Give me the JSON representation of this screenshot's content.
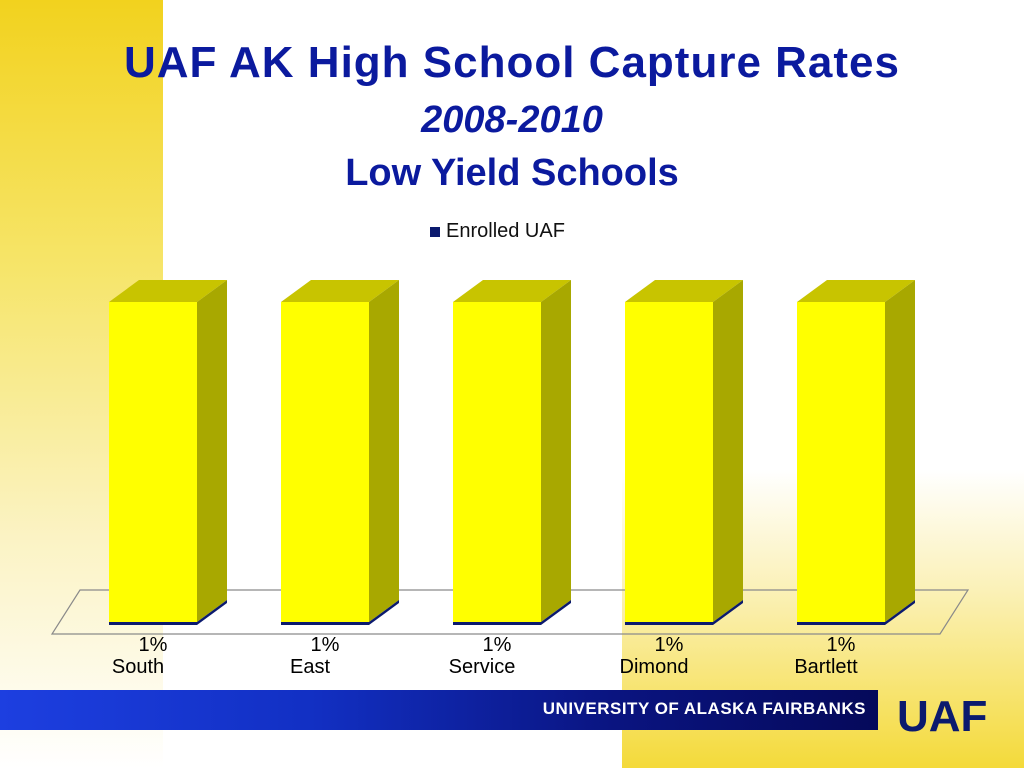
{
  "title": {
    "line1": "UAF AK High School Capture Rates",
    "line2": "2008-2010",
    "line3": "Low Yield Schools"
  },
  "legend": {
    "label": "Enrolled UAF"
  },
  "colors": {
    "bar_front": "#ffff00",
    "bar_side": "#a8a800",
    "bar_top": "#c8c400",
    "title": "#0b1a9e",
    "legend_swatch": "#0b1a6e"
  },
  "chart_data": {
    "type": "bar",
    "title": "UAF AK High School Capture Rates 2008-2010 Low Yield Schools",
    "categories": [
      "South",
      "East",
      "Service",
      "Dimond",
      "Bartlett"
    ],
    "series": [
      {
        "name": "Enrolled UAF",
        "values": [
          1,
          1,
          1,
          1,
          1
        ]
      }
    ],
    "data_labels": [
      "1%",
      "1%",
      "1%",
      "1%",
      "1%"
    ],
    "unit": "%",
    "note": "bars depict the remaining share filling the plot; labels show 1% enrolled UAF",
    "ylim": [
      0,
      100
    ],
    "legend_position": "top-center"
  },
  "footer": {
    "institution": "UNIVERSITY OF ALASKA FAIRBANKS",
    "logo_text": "UAF"
  }
}
